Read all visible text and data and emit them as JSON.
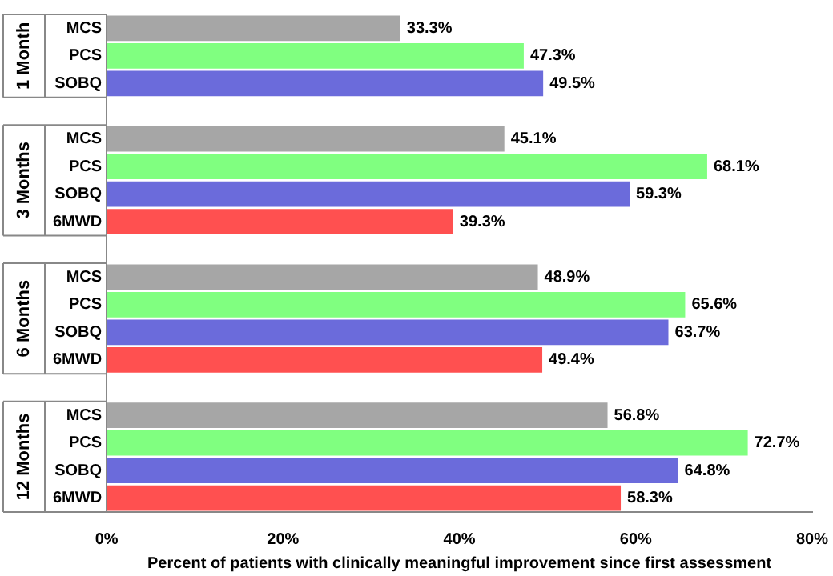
{
  "chart_data": {
    "type": "bar",
    "orientation": "horizontal",
    "xlabel": "Percent of patients with clinically meaningful improvement since first assessment",
    "categories": [
      "MCS",
      "PCS",
      "SOBQ",
      null,
      "MCS",
      "PCS",
      "SOBQ",
      "6MWD",
      null,
      "MCS",
      "PCS",
      "SOBQ",
      "6MWD",
      null,
      "MCS",
      "PCS",
      "SOBQ",
      "6MWD"
    ],
    "values": [
      33.3,
      47.3,
      49.5,
      null,
      45.1,
      68.1,
      59.3,
      39.3,
      null,
      48.9,
      65.6,
      63.7,
      49.4,
      null,
      56.8,
      72.7,
      64.8,
      58.3
    ],
    "colors": [
      "#a6a6a6",
      "#80ff80",
      "#6b6bdb",
      "#ffffff",
      "#a6a6a6",
      "#80ff80",
      "#6b6bdb",
      "#ff5050",
      "#ffffff",
      "#a6a6a6",
      "#80ff80",
      "#6b6bdb",
      "#ff5050",
      "#ffffff",
      "#a6a6a6",
      "#80ff80",
      "#6b6bdb",
      "#ff5050"
    ],
    "value_labels": [
      "33.3%",
      "47.3%",
      "49.5%",
      null,
      "45.1%",
      "68.1%",
      "59.3%",
      "39.3%",
      null,
      "48.9%",
      "65.6%",
      "63.7%",
      "49.4%",
      null,
      "56.8%",
      "72.7%",
      "64.8%",
      "58.3%"
    ],
    "annotations": [
      "1 Month",
      "3 Months",
      "6 Months",
      "12 Months"
    ],
    "xlim": [
      0,
      80
    ],
    "xticks": [
      {
        "value": 0,
        "label": "0%"
      },
      {
        "value": 20,
        "label": "20%"
      },
      {
        "value": 40,
        "label": "40%"
      },
      {
        "value": 60,
        "label": "60%"
      },
      {
        "value": 80,
        "label": "80%"
      }
    ],
    "legend": false,
    "grid": false
  }
}
